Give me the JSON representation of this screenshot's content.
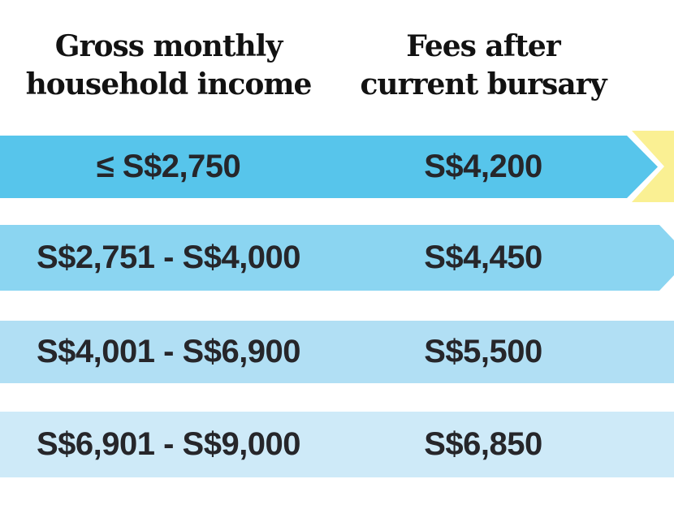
{
  "header": {
    "col1_line1": "Gross monthly",
    "col1_line2": "household income",
    "col2_line1": "Fees after",
    "col2_line2": "current bursary"
  },
  "chart_data": {
    "type": "table",
    "columns": [
      "Gross monthly household income",
      "Fees after current bursary"
    ],
    "rows": [
      {
        "income": "≤ S$2,750",
        "fee": "S$4,200"
      },
      {
        "income": "S$2,751 - S$4,000",
        "fee": "S$4,450"
      },
      {
        "income": "S$4,001 - S$6,900",
        "fee": "S$5,500"
      },
      {
        "income": "S$6,901 - S$9,000",
        "fee": "S$6,850"
      }
    ],
    "highlighted_row_index": 0,
    "layout": "horizontal bars, darkest blue at top fading lighter per row, first row drawn as right-pointing arrow over yellow chevron"
  },
  "colors": {
    "row1": "#57c5eb",
    "row2": "#8bd5f1",
    "row3": "#b1dff4",
    "row4": "#ceeaf8",
    "highlight": "#faf093",
    "text": "#26262a",
    "header_text": "#121212"
  }
}
